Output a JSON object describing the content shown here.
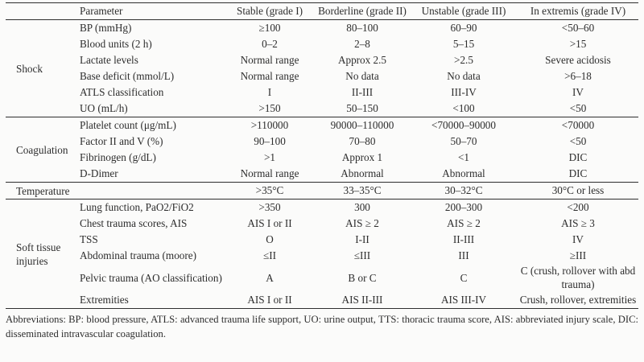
{
  "table": {
    "headers": {
      "group": "",
      "parameter": "Parameter",
      "cols": [
        "Stable (grade I)",
        "Borderline (grade II)",
        "Unstable (grade III)",
        "In extremis (grade IV)"
      ]
    },
    "sections": [
      {
        "group": "Shock",
        "rows": [
          {
            "parameter": "BP (mmHg)",
            "values": [
              "≥100",
              "80–100",
              "60–90",
              "<50–60"
            ]
          },
          {
            "parameter": "Blood units (2 h)",
            "values": [
              "0–2",
              "2–8",
              "5–15",
              ">15"
            ]
          },
          {
            "parameter": "Lactate levels",
            "values": [
              "Normal range",
              "Approx 2.5",
              ">2.5",
              "Severe acidosis"
            ]
          },
          {
            "parameter": "Base deficit (mmol/L)",
            "values": [
              "Normal range",
              "No data",
              "No data",
              ">6–18"
            ]
          },
          {
            "parameter": "ATLS classification",
            "values": [
              "I",
              "II-III",
              "III-IV",
              "IV"
            ]
          },
          {
            "parameter": "UO (mL/h)",
            "values": [
              ">150",
              "50–150",
              "<100",
              "<50"
            ]
          }
        ]
      },
      {
        "group": "Coagulation",
        "rows": [
          {
            "parameter": "Platelet count (μg/mL)",
            "values": [
              ">110000",
              "90000–110000",
              "<70000–90000",
              "<70000"
            ]
          },
          {
            "parameter": "Factor II and V (%)",
            "values": [
              "90–100",
              "70–80",
              "50–70",
              "<50"
            ]
          },
          {
            "parameter": "Fibrinogen (g/dL)",
            "values": [
              ">1",
              "Approx 1",
              "<1",
              "DIC"
            ]
          },
          {
            "parameter": "D-Dimer",
            "values": [
              "Normal range",
              "Abnormal",
              "Abnormal",
              "DIC"
            ]
          }
        ]
      },
      {
        "group": "Temperature",
        "rows": [
          {
            "parameter": "",
            "values": [
              ">35°C",
              "33–35°C",
              "30–32°C",
              "30°C or less"
            ]
          }
        ]
      },
      {
        "group": "Soft tissue injuries",
        "rows": [
          {
            "parameter": "Lung function, PaO2/FiO2",
            "values": [
              ">350",
              "300",
              "200–300",
              "<200"
            ]
          },
          {
            "parameter": "Chest trauma scores, AIS",
            "values": [
              "AIS I or II",
              "AIS ≥ 2",
              "AIS ≥ 2",
              "AIS ≥ 3"
            ]
          },
          {
            "parameter": "TSS",
            "values": [
              "O",
              "I-II",
              "II-III",
              "IV"
            ]
          },
          {
            "parameter": "Abdominal trauma (moore)",
            "values": [
              "≤II",
              "≤III",
              "III",
              "≥III"
            ]
          },
          {
            "parameter": "Pelvic trauma (AO classification)",
            "values": [
              "A",
              "B or C",
              "C",
              "C (crush, rollover with abd trauma)"
            ]
          },
          {
            "parameter": "Extremities",
            "values": [
              "AIS I or II",
              "AIS II-III",
              "AIS III-IV",
              "Crush, rollover, extremities"
            ]
          }
        ]
      }
    ],
    "footnote": "Abbreviations: BP: blood pressure, ATLS: advanced trauma life support, UO: urine output, TTS: thoracic trauma score, AIS: abbreviated injury scale, DIC: disseminated intravascular coagulation."
  }
}
